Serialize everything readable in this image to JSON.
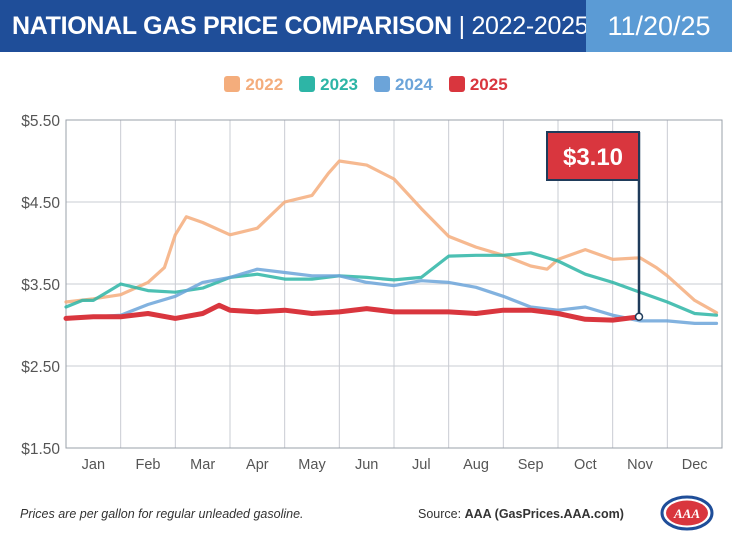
{
  "header": {
    "title_main": "NATIONAL GAS PRICE COMPARISON",
    "title_sep": " | ",
    "title_years": "2022-2025",
    "date": "11/20/25"
  },
  "footer": {
    "note": "Prices are per gallon for regular unleaded gasoline.",
    "source_label": "Source: ",
    "source_value": "AAA (GasPrices.AAA.com)",
    "logo_text": "AAA"
  },
  "chart_data": {
    "type": "line",
    "title": "NATIONAL GAS PRICE COMPARISON | 2022-2025",
    "xlabel": "",
    "ylabel": "",
    "x_tick_labels": [
      "Jan",
      "Feb",
      "Mar",
      "Apr",
      "May",
      "Jun",
      "Jul",
      "Aug",
      "Sep",
      "Oct",
      "Nov",
      "Dec"
    ],
    "y_tick_labels": [
      "$5.50",
      "$4.50",
      "$3.50",
      "$2.50",
      "$1.50"
    ],
    "ylim": [
      1.5,
      5.5
    ],
    "xlim": [
      0,
      12
    ],
    "grid": true,
    "legend_position": "top-center",
    "callout": {
      "label": "$3.10",
      "x": 10.5,
      "y": 3.1
    },
    "series": [
      {
        "name": "2022",
        "color": "#f4ad7c",
        "x": [
          0,
          0.5,
          1,
          1.5,
          1.8,
          2.0,
          2.2,
          2.5,
          3.0,
          3.5,
          4.0,
          4.5,
          4.8,
          5.0,
          5.5,
          6.0,
          6.5,
          7.0,
          7.5,
          8.0,
          8.5,
          8.8,
          9.0,
          9.5,
          10.0,
          10.5,
          10.8,
          11.0,
          11.5,
          11.9
        ],
        "y": [
          3.28,
          3.32,
          3.37,
          3.52,
          3.7,
          4.1,
          4.32,
          4.25,
          4.1,
          4.18,
          4.5,
          4.58,
          4.85,
          5.0,
          4.95,
          4.78,
          4.42,
          4.08,
          3.95,
          3.85,
          3.72,
          3.68,
          3.8,
          3.92,
          3.8,
          3.82,
          3.7,
          3.6,
          3.3,
          3.15
        ]
      },
      {
        "name": "2023",
        "color": "#2db5a6",
        "x": [
          0,
          0.3,
          0.5,
          0.8,
          1.0,
          1.5,
          2.0,
          2.5,
          3.0,
          3.5,
          4.0,
          4.5,
          5.0,
          5.5,
          6.0,
          6.5,
          7.0,
          7.5,
          8.0,
          8.5,
          9.0,
          9.5,
          10.0,
          10.5,
          11.0,
          11.5,
          11.9
        ],
        "y": [
          3.22,
          3.3,
          3.3,
          3.42,
          3.5,
          3.42,
          3.4,
          3.45,
          3.58,
          3.62,
          3.56,
          3.56,
          3.6,
          3.58,
          3.55,
          3.58,
          3.84,
          3.85,
          3.85,
          3.88,
          3.78,
          3.62,
          3.52,
          3.4,
          3.28,
          3.14,
          3.12
        ]
      },
      {
        "name": "2024",
        "color": "#6ca4d9",
        "x": [
          0,
          0.5,
          1,
          1.5,
          2.0,
          2.5,
          3.0,
          3.5,
          4.0,
          4.5,
          5.0,
          5.5,
          6.0,
          6.5,
          7.0,
          7.5,
          8.0,
          8.5,
          9.0,
          9.5,
          10.0,
          10.5,
          11.0,
          11.5,
          11.9
        ],
        "y": [
          3.08,
          3.1,
          3.12,
          3.25,
          3.35,
          3.52,
          3.58,
          3.68,
          3.64,
          3.6,
          3.6,
          3.52,
          3.48,
          3.54,
          3.52,
          3.46,
          3.35,
          3.22,
          3.18,
          3.22,
          3.12,
          3.05,
          3.05,
          3.02,
          3.02
        ]
      },
      {
        "name": "2025",
        "color": "#d9363e",
        "x": [
          0,
          0.5,
          1.0,
          1.5,
          2.0,
          2.5,
          2.8,
          3.0,
          3.5,
          4.0,
          4.5,
          5.0,
          5.5,
          6.0,
          6.5,
          7.0,
          7.5,
          8.0,
          8.5,
          9.0,
          9.5,
          10.0,
          10.5
        ],
        "y": [
          3.08,
          3.1,
          3.1,
          3.14,
          3.08,
          3.14,
          3.24,
          3.18,
          3.16,
          3.18,
          3.14,
          3.16,
          3.2,
          3.16,
          3.16,
          3.16,
          3.14,
          3.18,
          3.18,
          3.14,
          3.07,
          3.06,
          3.1
        ]
      }
    ]
  }
}
